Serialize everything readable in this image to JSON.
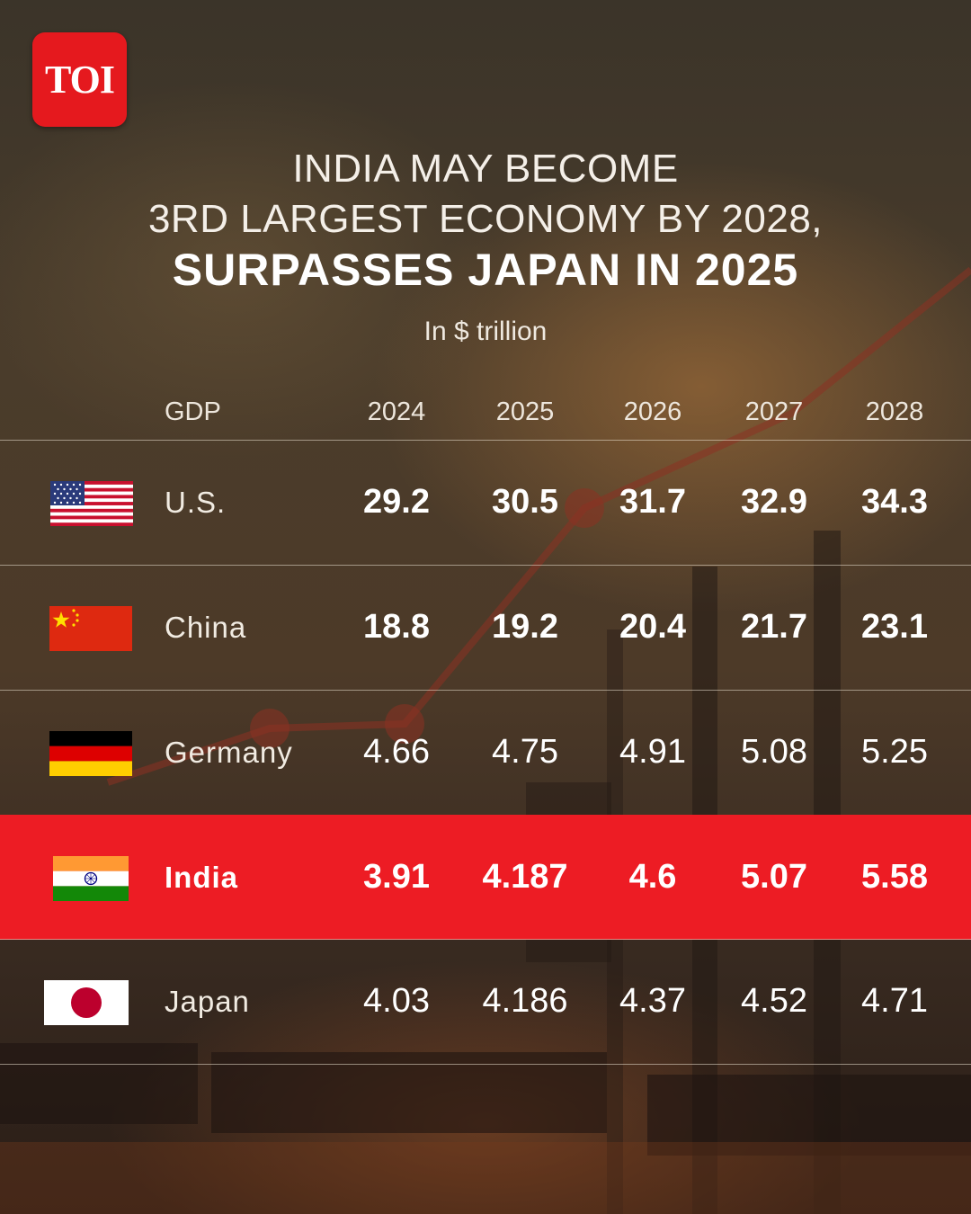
{
  "brand": {
    "logo_text": "TOI"
  },
  "title": {
    "line1": "INDIA MAY BECOME",
    "line2": "3RD LARGEST ECONOMY BY 2028,",
    "line3": "SURPASSES JAPAN IN 2025"
  },
  "subtitle": "In $ trillion",
  "colors": {
    "highlight": "#ed1c24",
    "logo": "#e5191e"
  },
  "chart_data": {
    "type": "table",
    "title": "INDIA MAY BECOME 3RD LARGEST ECONOMY BY 2028, SURPASSES JAPAN IN 2025",
    "unit": "In $ trillion",
    "header": "GDP",
    "columns": [
      "2024",
      "2025",
      "2026",
      "2027",
      "2028"
    ],
    "rows": [
      {
        "country": "U.S.",
        "flag": "us-flag",
        "values": [
          "29.2",
          "30.5",
          "31.7",
          "32.9",
          "34.3"
        ]
      },
      {
        "country": "China",
        "flag": "china-flag",
        "values": [
          "18.8",
          "19.2",
          "20.4",
          "21.7",
          "23.1"
        ]
      },
      {
        "country": "Germany",
        "flag": "germany-flag",
        "values": [
          "4.66",
          "4.75",
          "4.91",
          "5.08",
          "5.25"
        ]
      },
      {
        "country": "India",
        "flag": "india-flag",
        "highlight": true,
        "values": [
          "3.91",
          "4.187",
          "4.6",
          "5.07",
          "5.58"
        ]
      },
      {
        "country": "Japan",
        "flag": "japan-flag",
        "values": [
          "4.03",
          "4.186",
          "4.37",
          "4.52",
          "4.71"
        ]
      }
    ]
  }
}
